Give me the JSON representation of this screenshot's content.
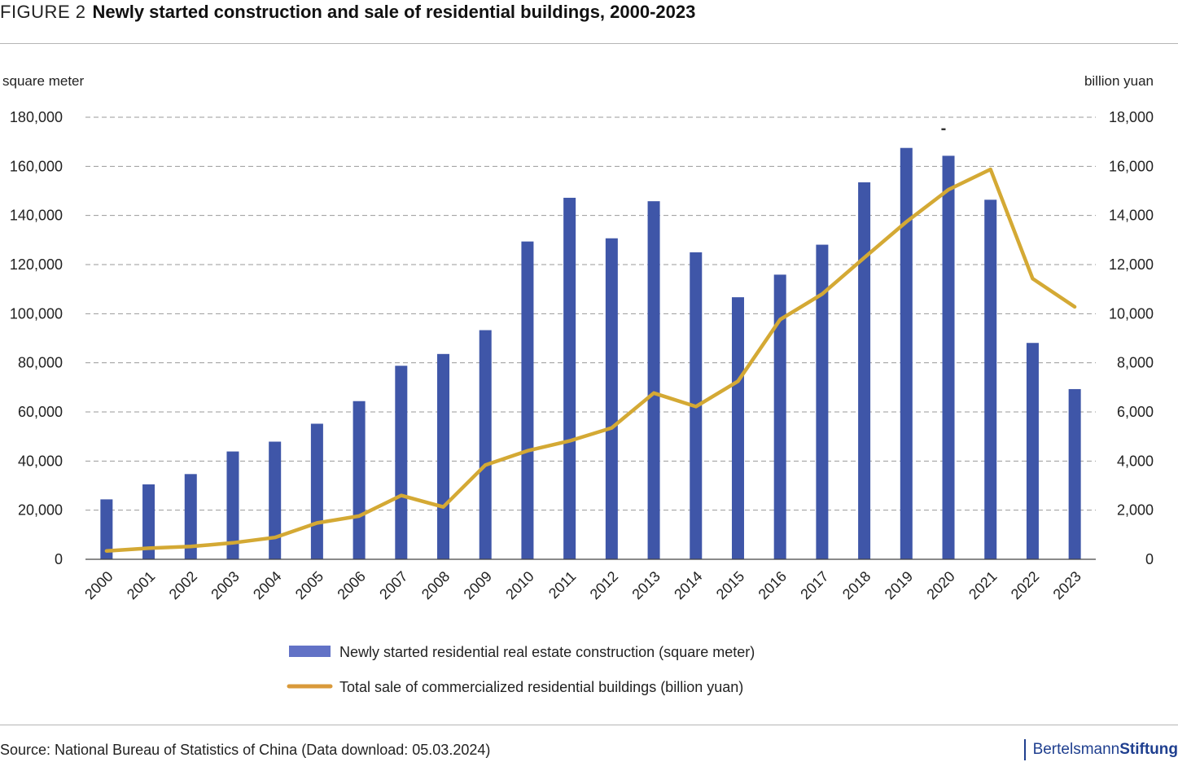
{
  "figure": {
    "label": "FIGURE 2",
    "title": "Newly started construction and sale of residential buildings, 2000-2023"
  },
  "footer": {
    "source": "Source: National Bureau of Statistics of China (Data download: 05.03.2024)",
    "brand_left": "Bertelsmann",
    "brand_right": "Stiftung"
  },
  "colors": {
    "bar": "#3F56A8",
    "line": "#D4A934",
    "grid": "#9a9a9a",
    "brand": "#1f3f8f"
  },
  "chart_data": {
    "type": "bar",
    "categories": [
      "2000",
      "2001",
      "2002",
      "2003",
      "2004",
      "2005",
      "2006",
      "2007",
      "2008",
      "2009",
      "2010",
      "2011",
      "2012",
      "2013",
      "2014",
      "2015",
      "2016",
      "2017",
      "2018",
      "2019",
      "2020",
      "2021",
      "2022",
      "2023"
    ],
    "ylabel": "square meter",
    "y2label": "billion yuan",
    "ylim": [
      0,
      180000
    ],
    "y2lim": [
      0,
      18000
    ],
    "yticks": [
      0,
      20000,
      40000,
      60000,
      80000,
      100000,
      120000,
      140000,
      160000,
      180000
    ],
    "yticklabels": [
      "0",
      "20,000",
      "40,000",
      "60,000",
      "80,000",
      "100,000",
      "120,000",
      "140,000",
      "160,000",
      "180,000"
    ],
    "y2ticks": [
      0,
      2000,
      4000,
      6000,
      8000,
      10000,
      12000,
      14000,
      16000,
      18000
    ],
    "y2ticklabels": [
      "0",
      "2,000",
      "4,000",
      "6,000",
      "8,000",
      "10,000",
      "12,000",
      "14,000",
      "16,000",
      "18,000"
    ],
    "grid": true,
    "legend_position": "bottom",
    "annotation": "-",
    "series": [
      {
        "name": "Newly started residential real estate construction (square meter)",
        "type": "bar",
        "axis": "left",
        "values": [
          24400,
          30500,
          34700,
          43900,
          47900,
          55200,
          64400,
          78800,
          83600,
          93300,
          129400,
          147200,
          130700,
          145800,
          125000,
          106700,
          115900,
          128100,
          153500,
          167500,
          164300,
          146400,
          88100,
          69300
        ]
      },
      {
        "name": "Total sale of commercialized residential buildings (billion yuan)",
        "type": "line",
        "axis": "right",
        "values": [
          340,
          450,
          520,
          670,
          890,
          1480,
          1760,
          2600,
          2130,
          3840,
          4420,
          4820,
          5350,
          6770,
          6220,
          7250,
          9760,
          10800,
          12280,
          13740,
          15050,
          15880,
          11430,
          10280
        ]
      }
    ]
  }
}
